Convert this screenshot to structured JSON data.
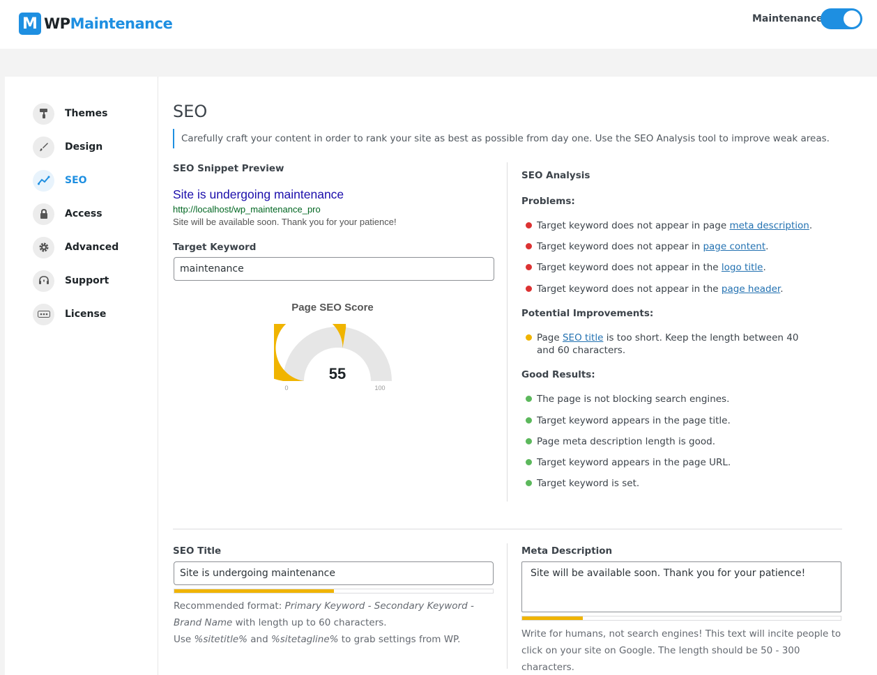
{
  "header": {
    "logo_badge": "M",
    "logo_wp": "WP",
    "logo_name": "Maintenance",
    "maintenance_label": "Maintenance",
    "maintenance_on": true,
    "accent_color": "#1e8fe1"
  },
  "sidebar": {
    "items": [
      {
        "label": "Themes",
        "icon": "paint-roller-icon",
        "glyph": "▐"
      },
      {
        "label": "Design",
        "icon": "brush-icon",
        "glyph": "✎"
      },
      {
        "label": "SEO",
        "icon": "chart-line-icon",
        "glyph": "⟋",
        "active": true
      },
      {
        "label": "Access",
        "icon": "lock-icon",
        "glyph": "🔒"
      },
      {
        "label": "Advanced",
        "icon": "gear-icon",
        "glyph": "⚙"
      },
      {
        "label": "Support",
        "icon": "headset-icon",
        "glyph": "☊"
      },
      {
        "label": "License",
        "icon": "key-dots-icon",
        "glyph": "•••"
      }
    ]
  },
  "main": {
    "title": "SEO",
    "description": "Carefully craft your content in order to rank your site as best as possible from day one. Use the SEO Analysis tool to improve weak areas.",
    "snippet": {
      "heading": "SEO Snippet Preview",
      "title": "Site is undergoing maintenance",
      "url": "http://localhost/wp_maintenance_pro",
      "description": "Site will be available soon. Thank you for your patience!"
    },
    "keyword": {
      "label": "Target Keyword",
      "value": "maintenance"
    },
    "score": {
      "title": "Page SEO Score",
      "value": "55",
      "fraction": 0.55,
      "min_label": "0",
      "max_label": "100",
      "fill_color": "#f0b400",
      "track_color": "#e6e6e6"
    },
    "analysis": {
      "heading": "SEO Analysis",
      "problems_heading": "Problems:",
      "problems": [
        {
          "before": "Target keyword does not appear in page ",
          "link": "meta description",
          "after": "."
        },
        {
          "before": "Target keyword does not appear in ",
          "link": "page content",
          "after": "."
        },
        {
          "before": "Target keyword does not appear in the ",
          "link": "logo title",
          "after": "."
        },
        {
          "before": "Target keyword does not appear in the ",
          "link": "page header",
          "after": "."
        }
      ],
      "improvements_heading": "Potential Improvements:",
      "improvements": [
        {
          "before": "Page ",
          "link": "SEO title",
          "after": " is too short. Keep the length between 40 and 60 characters."
        }
      ],
      "good_heading": "Good Results:",
      "good": [
        "The page is not blocking search engines.",
        "Target keyword appears in the page title.",
        "Page meta description length is good.",
        "Target keyword appears in the page URL.",
        "Target keyword is set."
      ]
    },
    "seo_title": {
      "label": "SEO Title",
      "value": "Site is undergoing maintenance",
      "progress": 0.5,
      "help_prefix": "Recommended format: ",
      "help_format": "Primary Keyword - Secondary Keyword - Brand Name",
      "help_suffix": " with length up to 60 characters.",
      "help2_prefix": "Use ",
      "help2_var1": "%sitetitle%",
      "help2_mid": " and ",
      "help2_var2": "%sitetagline%",
      "help2_suffix": " to grab settings from WP."
    },
    "meta_description": {
      "label": "Meta Description",
      "value": "Site will be available soon. Thank you for your patience!",
      "progress": 0.19,
      "help": "Write for humans, not search engines! This text will incite people to click on your site on Google. The length should be 50 - 300 characters."
    }
  }
}
